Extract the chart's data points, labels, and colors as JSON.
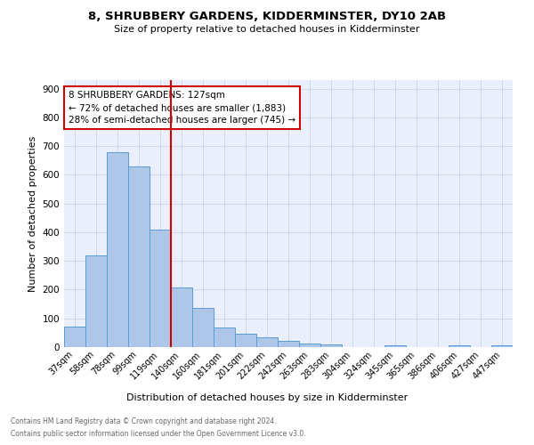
{
  "title1": "8, SHRUBBERY GARDENS, KIDDERMINSTER, DY10 2AB",
  "title2": "Size of property relative to detached houses in Kidderminster",
  "xlabel": "Distribution of detached houses by size in Kidderminster",
  "ylabel": "Number of detached properties",
  "footnote1": "Contains HM Land Registry data © Crown copyright and database right 2024.",
  "footnote2": "Contains public sector information licensed under the Open Government Licence v3.0.",
  "bin_labels": [
    "37sqm",
    "58sqm",
    "78sqm",
    "99sqm",
    "119sqm",
    "140sqm",
    "160sqm",
    "181sqm",
    "201sqm",
    "222sqm",
    "242sqm",
    "263sqm",
    "283sqm",
    "304sqm",
    "324sqm",
    "345sqm",
    "365sqm",
    "386sqm",
    "406sqm",
    "427sqm",
    "447sqm"
  ],
  "bar_heights": [
    70,
    320,
    680,
    630,
    410,
    207,
    135,
    68,
    47,
    33,
    22,
    12,
    8,
    0,
    0,
    7,
    0,
    0,
    7,
    0,
    7
  ],
  "bar_color": "#aec6e8",
  "bar_edge_color": "#5b9bd5",
  "grid_color": "#d0d8e8",
  "background_color": "#eaf0fb",
  "vline_x": 4.5,
  "vline_color": "#cc0000",
  "annotation_text": "8 SHRUBBERY GARDENS: 127sqm\n← 72% of detached houses are smaller (1,883)\n28% of semi-detached houses are larger (745) →",
  "annotation_box_color": "#cc0000",
  "ylim": [
    0,
    930
  ],
  "yticks": [
    0,
    100,
    200,
    300,
    400,
    500,
    600,
    700,
    800,
    900
  ]
}
